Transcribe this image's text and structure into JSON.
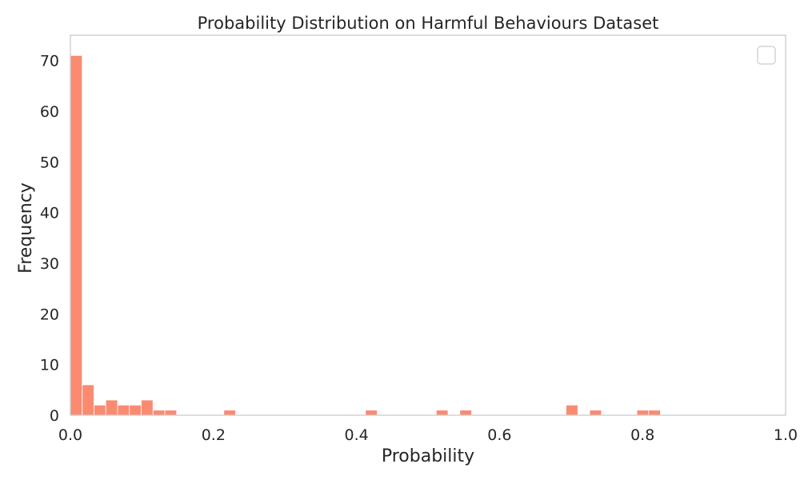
{
  "chart_data": {
    "type": "histogram",
    "title": "Probability Distribution on Harmful Behaviours Dataset",
    "xlabel": "Probability",
    "ylabel": "Frequency",
    "xlim": [
      0.0,
      1.0
    ],
    "ylim": [
      0,
      75
    ],
    "x_ticks": [
      "0.0",
      "0.2",
      "0.4",
      "0.6",
      "0.8",
      "1.0"
    ],
    "x_tick_values": [
      0.0,
      0.2,
      0.4,
      0.6,
      0.8,
      1.0
    ],
    "y_ticks": [
      "0",
      "10",
      "20",
      "30",
      "40",
      "50",
      "60",
      "70"
    ],
    "y_tick_values": [
      0,
      10,
      20,
      30,
      40,
      50,
      60,
      70
    ],
    "grid": false,
    "legend": {
      "position": "top-right",
      "entries": []
    },
    "bar_color": "#fa8b71",
    "bins": [
      {
        "start": 0.0,
        "end": 0.0165,
        "count": 71
      },
      {
        "start": 0.0165,
        "end": 0.033,
        "count": 6
      },
      {
        "start": 0.033,
        "end": 0.0495,
        "count": 2
      },
      {
        "start": 0.0495,
        "end": 0.066,
        "count": 3
      },
      {
        "start": 0.066,
        "end": 0.0825,
        "count": 2
      },
      {
        "start": 0.0825,
        "end": 0.099,
        "count": 2
      },
      {
        "start": 0.099,
        "end": 0.1155,
        "count": 3
      },
      {
        "start": 0.1155,
        "end": 0.132,
        "count": 1
      },
      {
        "start": 0.132,
        "end": 0.1485,
        "count": 1
      },
      {
        "start": 0.2145,
        "end": 0.231,
        "count": 1
      },
      {
        "start": 0.4125,
        "end": 0.429,
        "count": 1
      },
      {
        "start": 0.5115,
        "end": 0.528,
        "count": 1
      },
      {
        "start": 0.5445,
        "end": 0.561,
        "count": 1
      },
      {
        "start": 0.693,
        "end": 0.7095,
        "count": 2
      },
      {
        "start": 0.726,
        "end": 0.7425,
        "count": 1
      },
      {
        "start": 0.792,
        "end": 0.8085,
        "count": 1
      },
      {
        "start": 0.8085,
        "end": 0.825,
        "count": 1
      }
    ]
  }
}
